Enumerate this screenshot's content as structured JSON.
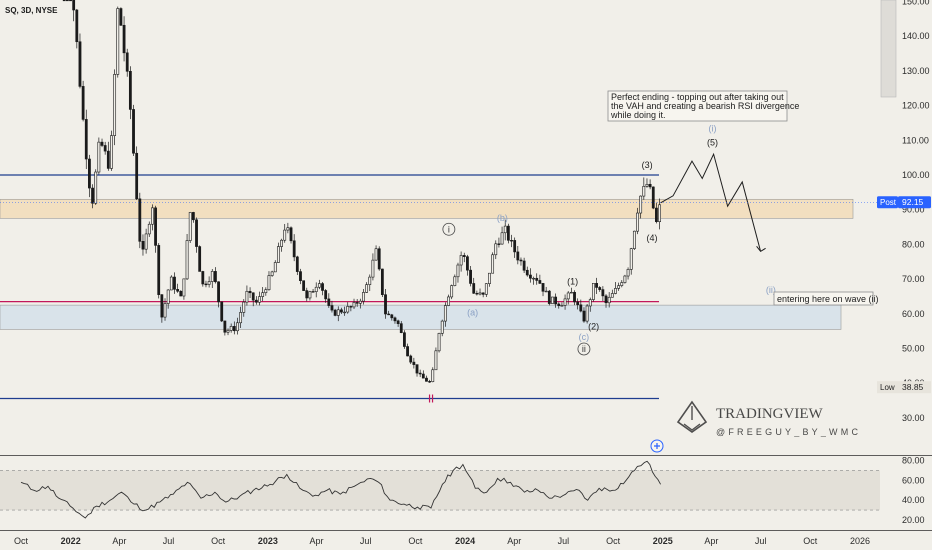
{
  "header": {
    "symbol_label": "SQ, 3D, NYSE"
  },
  "colors": {
    "background": "#f1efe9",
    "candle": "#1a1a1a",
    "blue_line": "#1f3d8f",
    "red_line": "#c2185b",
    "tan_zone": "#f2dfc0",
    "blue_zone": "#d9e3ea",
    "rsi_line": "#333333",
    "annotation_blue": "#8aa0c4",
    "price_tag_blue": "#2962ff"
  },
  "chart_data": [
    {
      "type": "candlestick",
      "title": "SQ, 3D, NYSE",
      "y_axis": {
        "ticks": [
          30,
          40,
          50,
          60,
          70,
          80,
          90,
          100,
          110,
          120,
          130,
          140,
          150
        ],
        "tick_labels": [
          "30.00",
          "40.00",
          "50.00",
          "60.00",
          "70.00",
          "80.00",
          "90.00",
          "100.00",
          "110.00",
          "120.00",
          "130.00",
          "140.00",
          "150.00"
        ],
        "range": [
          20.5,
          151.7
        ]
      },
      "x_axis": {
        "tick_labels": [
          "Oct",
          "2022",
          "Apr",
          "Jul",
          "Oct",
          "2023",
          "Apr",
          "Jul",
          "Oct",
          "2024",
          "Apr",
          "Jul",
          "Oct",
          "2025",
          "Apr",
          "Jul",
          "Oct",
          "2026"
        ],
        "bold_labels": [
          "2022",
          "2023",
          "2024",
          "2025"
        ],
        "tick_dates": [
          "2021-10",
          "2022-01",
          "2022-04",
          "2022-07",
          "2022-10",
          "2023-01",
          "2023-04",
          "2023-07",
          "2023-10",
          "2024-01",
          "2024-04",
          "2024-07",
          "2024-10",
          "2025-01",
          "2025-04",
          "2025-07",
          "2025-10",
          "2026-01"
        ]
      },
      "price_path": [
        {
          "date": "2021-12-20",
          "price": 178
        },
        {
          "date": "2022-01-10",
          "price": 142
        },
        {
          "date": "2022-01-26",
          "price": 112
        },
        {
          "date": "2022-02-09",
          "price": 91
        },
        {
          "date": "2022-02-24",
          "price": 110
        },
        {
          "date": "2022-03-15",
          "price": 102
        },
        {
          "date": "2022-03-30",
          "price": 150
        },
        {
          "date": "2022-04-20",
          "price": 122
        },
        {
          "date": "2022-05-12",
          "price": 75
        },
        {
          "date": "2022-06-01",
          "price": 92
        },
        {
          "date": "2022-06-17",
          "price": 58
        },
        {
          "date": "2022-07-05",
          "price": 70
        },
        {
          "date": "2022-07-25",
          "price": 64
        },
        {
          "date": "2022-08-12",
          "price": 92
        },
        {
          "date": "2022-09-01",
          "price": 68
        },
        {
          "date": "2022-09-22",
          "price": 72
        },
        {
          "date": "2022-10-12",
          "price": 55
        },
        {
          "date": "2022-11-03",
          "price": 56
        },
        {
          "date": "2022-11-22",
          "price": 66
        },
        {
          "date": "2022-12-12",
          "price": 63
        },
        {
          "date": "2023-01-10",
          "price": 72
        },
        {
          "date": "2023-02-03",
          "price": 86
        },
        {
          "date": "2023-02-23",
          "price": 74
        },
        {
          "date": "2023-03-14",
          "price": 64
        },
        {
          "date": "2023-04-06",
          "price": 70
        },
        {
          "date": "2023-04-27",
          "price": 60
        },
        {
          "date": "2023-05-18",
          "price": 61
        },
        {
          "date": "2023-06-08",
          "price": 62
        },
        {
          "date": "2023-06-29",
          "price": 66
        },
        {
          "date": "2023-07-20",
          "price": 78
        },
        {
          "date": "2023-08-07",
          "price": 60
        },
        {
          "date": "2023-08-28",
          "price": 58
        },
        {
          "date": "2023-09-18",
          "price": 48
        },
        {
          "date": "2023-10-09",
          "price": 42
        },
        {
          "date": "2023-10-30",
          "price": 40
        },
        {
          "date": "2023-11-15",
          "price": 56
        },
        {
          "date": "2023-12-05",
          "price": 68
        },
        {
          "date": "2023-12-27",
          "price": 78
        },
        {
          "date": "2024-01-17",
          "price": 66
        },
        {
          "date": "2024-02-05",
          "price": 65
        },
        {
          "date": "2024-02-26",
          "price": 80
        },
        {
          "date": "2024-03-15",
          "price": 84
        },
        {
          "date": "2024-04-05",
          "price": 77
        },
        {
          "date": "2024-04-26",
          "price": 72
        },
        {
          "date": "2024-05-15",
          "price": 70
        },
        {
          "date": "2024-06-05",
          "price": 64
        },
        {
          "date": "2024-06-26",
          "price": 63
        },
        {
          "date": "2024-07-17",
          "price": 66
        },
        {
          "date": "2024-08-07",
          "price": 58
        },
        {
          "date": "2024-08-28",
          "price": 69
        },
        {
          "date": "2024-09-18",
          "price": 63
        },
        {
          "date": "2024-10-07",
          "price": 67
        },
        {
          "date": "2024-10-28",
          "price": 73
        },
        {
          "date": "2024-11-18",
          "price": 93
        },
        {
          "date": "2024-12-05",
          "price": 98
        },
        {
          "date": "2024-12-20",
          "price": 86
        },
        {
          "date": "2024-12-28",
          "price": 92
        }
      ],
      "projection_path": [
        {
          "date": "2024-12-28",
          "price": 92
        },
        {
          "date": "2025-01-20",
          "price": 94
        },
        {
          "date": "2025-02-24",
          "price": 104
        },
        {
          "date": "2025-03-15",
          "price": 99
        },
        {
          "date": "2025-04-05",
          "price": 106
        },
        {
          "date": "2025-05-01",
          "price": 91
        },
        {
          "date": "2025-05-28",
          "price": 98
        },
        {
          "date": "2025-07-01",
          "price": 78
        }
      ],
      "levels": [
        {
          "name": "upper-blue-line",
          "price": 100
        },
        {
          "name": "red-line",
          "price": 63.5
        },
        {
          "name": "lower-blue-line",
          "price": 35.6
        }
      ],
      "zones": [
        {
          "name": "value-area-high-zone",
          "top": 93,
          "bottom": 87.5
        },
        {
          "name": "demand-zone",
          "top": 62.5,
          "bottom": 55.5
        }
      ],
      "price_tags": [
        {
          "label": "Post",
          "value": "92.15",
          "price": 92.15
        },
        {
          "label": "Low",
          "value": "38.85",
          "price": 38.85
        }
      ],
      "wave_labels": [
        {
          "text": "(3)",
          "date": "2024-12-03",
          "price": 102
        },
        {
          "text": "(4)",
          "date": "2024-12-12",
          "price": 81
        },
        {
          "text": "(5)",
          "date": "2025-04-03",
          "price": 108.5
        },
        {
          "text": "(i)",
          "date": "2025-04-03",
          "price": 112.5
        },
        {
          "text": "(1)",
          "date": "2024-07-18",
          "price": 68.5
        },
        {
          "text": "(2)",
          "date": "2024-08-26",
          "price": 55.5
        },
        {
          "text": "(b)",
          "date": "2024-03-10",
          "price": 86.8
        },
        {
          "text": "(a)",
          "date": "2024-01-15",
          "price": 59.5
        },
        {
          "text": "(c)",
          "date": "2024-08-08",
          "price": 52.5
        },
        {
          "text": "ii",
          "date": "2024-08-08",
          "price": 49
        },
        {
          "text": "i",
          "date": "2023-12-02",
          "price": 83.5
        },
        {
          "text": "(ii)",
          "date": "2025-07-20",
          "price": 66
        }
      ],
      "annotations": [
        {
          "text": "Perfect ending - topping out after taking out the VAH and creating a bearish RSI divergence while doing it.",
          "lines": [
            "Perfect ending - topping out after taking out",
            "the VAH and creating a bearish RSI divergence",
            "while doing it."
          ]
        },
        {
          "text": "entering here on wave (ii)"
        }
      ]
    },
    {
      "type": "line",
      "name": "RSI",
      "y_axis": {
        "ticks": [
          20,
          40,
          60,
          80
        ],
        "tick_labels": [
          "20.00",
          "40.00",
          "60.00",
          "80.00"
        ],
        "range": [
          16,
          84
        ]
      },
      "levels": [
        30,
        70
      ],
      "points": [
        {
          "date": "2021-10-01",
          "value": 58
        },
        {
          "date": "2021-10-25",
          "value": 50
        },
        {
          "date": "2021-11-20",
          "value": 54
        },
        {
          "date": "2021-12-10",
          "value": 42
        },
        {
          "date": "2022-01-05",
          "value": 32
        },
        {
          "date": "2022-01-28",
          "value": 22
        },
        {
          "date": "2022-02-18",
          "value": 34
        },
        {
          "date": "2022-03-15",
          "value": 40
        },
        {
          "date": "2022-04-05",
          "value": 48
        },
        {
          "date": "2022-04-28",
          "value": 36
        },
        {
          "date": "2022-05-20",
          "value": 30
        },
        {
          "date": "2022-06-15",
          "value": 38
        },
        {
          "date": "2022-07-10",
          "value": 46
        },
        {
          "date": "2022-08-05",
          "value": 58
        },
        {
          "date": "2022-08-30",
          "value": 42
        },
        {
          "date": "2022-09-25",
          "value": 48
        },
        {
          "date": "2022-10-15",
          "value": 38
        },
        {
          "date": "2022-11-10",
          "value": 44
        },
        {
          "date": "2022-12-05",
          "value": 50
        },
        {
          "date": "2023-01-05",
          "value": 56
        },
        {
          "date": "2023-02-05",
          "value": 66
        },
        {
          "date": "2023-03-01",
          "value": 52
        },
        {
          "date": "2023-03-25",
          "value": 44
        },
        {
          "date": "2023-04-20",
          "value": 50
        },
        {
          "date": "2023-05-15",
          "value": 46
        },
        {
          "date": "2023-06-10",
          "value": 54
        },
        {
          "date": "2023-07-10",
          "value": 62
        },
        {
          "date": "2023-07-25",
          "value": 58
        },
        {
          "date": "2023-08-15",
          "value": 40
        },
        {
          "date": "2023-09-10",
          "value": 36
        },
        {
          "date": "2023-10-05",
          "value": 33
        },
        {
          "date": "2023-10-30",
          "value": 32
        },
        {
          "date": "2023-11-20",
          "value": 56
        },
        {
          "date": "2023-12-10",
          "value": 70
        },
        {
          "date": "2023-12-28",
          "value": 76
        },
        {
          "date": "2024-01-20",
          "value": 52
        },
        {
          "date": "2024-02-10",
          "value": 48
        },
        {
          "date": "2024-03-01",
          "value": 62
        },
        {
          "date": "2024-03-25",
          "value": 58
        },
        {
          "date": "2024-04-20",
          "value": 48
        },
        {
          "date": "2024-05-15",
          "value": 50
        },
        {
          "date": "2024-06-10",
          "value": 42
        },
        {
          "date": "2024-07-05",
          "value": 46
        },
        {
          "date": "2024-07-30",
          "value": 50
        },
        {
          "date": "2024-08-15",
          "value": 40
        },
        {
          "date": "2024-09-05",
          "value": 52
        },
        {
          "date": "2024-09-30",
          "value": 50
        },
        {
          "date": "2024-10-25",
          "value": 60
        },
        {
          "date": "2024-11-15",
          "value": 74
        },
        {
          "date": "2024-11-28",
          "value": 78
        },
        {
          "date": "2024-12-08",
          "value": 76
        },
        {
          "date": "2024-12-18",
          "value": 64
        },
        {
          "date": "2024-12-28",
          "value": 56
        }
      ]
    }
  ],
  "watermark": {
    "brand": "TRADINGVIEW",
    "handle": "@FREEGUY_BY_WMC"
  }
}
